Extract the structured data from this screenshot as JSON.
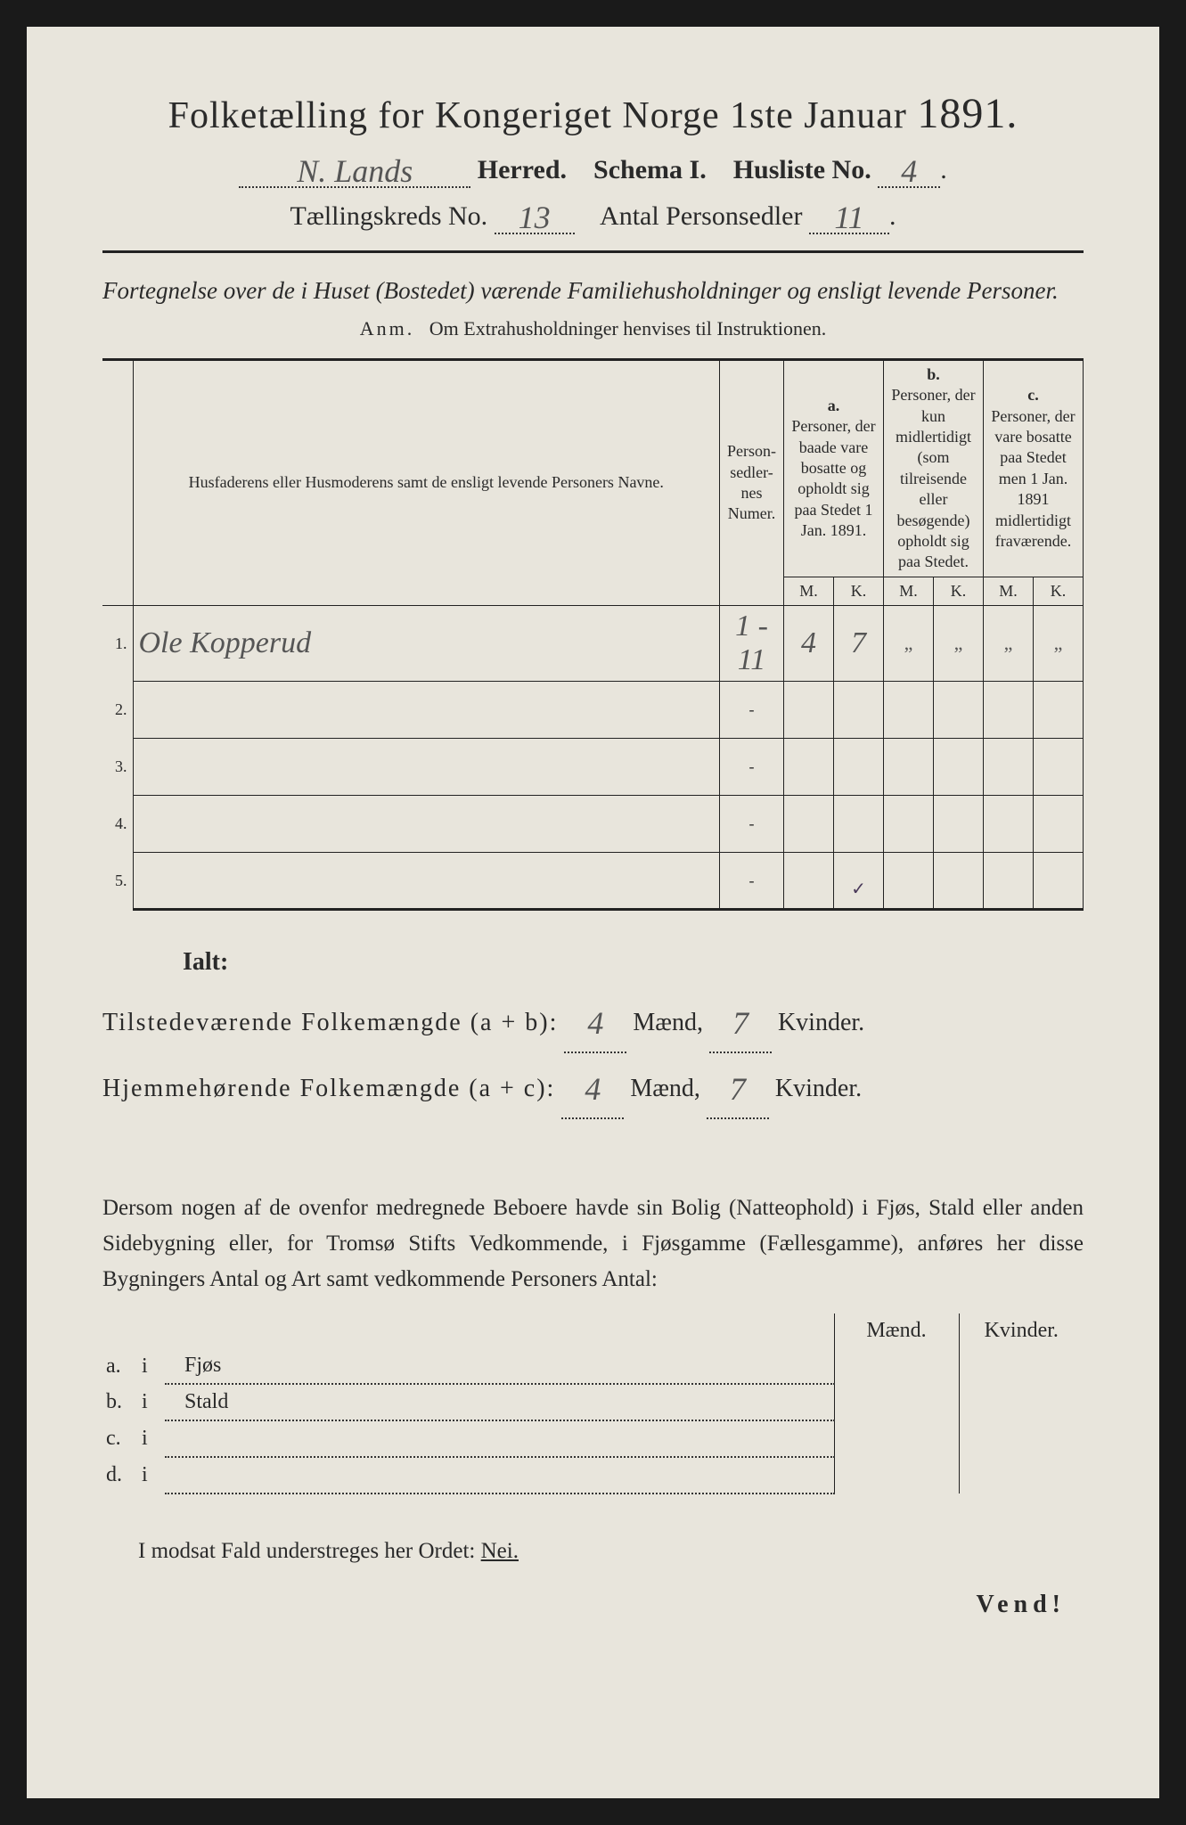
{
  "title": {
    "prefix": "Folketælling for Kongeriget Norge 1ste Januar",
    "year": "1891."
  },
  "header": {
    "herred_value": "N. Lands",
    "herred_label": "Herred.",
    "schema_label": "Schema I.",
    "husliste_label": "Husliste No.",
    "husliste_value": "4",
    "kreds_label": "Tællingskreds No.",
    "kreds_value": "13",
    "antal_label": "Antal Personsedler",
    "antal_value": "11"
  },
  "description": "Fortegnelse over de i Huset (Bostedet) værende Familiehusholdninger og ensligt levende Personer.",
  "anm": {
    "label": "Anm.",
    "text": "Om Extrahusholdninger henvises til Instruktionen."
  },
  "columns": {
    "name": "Husfaderens eller Husmoderens samt de ensligt levende Personers Navne.",
    "numer": "Person-\nsedler-\nnes\nNumer.",
    "a": {
      "letter": "a.",
      "text": "Personer, der baade vare bosatte og opholdt sig paa Stedet 1 Jan. 1891."
    },
    "b": {
      "letter": "b.",
      "text": "Personer, der kun midlertidigt (som tilreisende eller besøgende) opholdt sig paa Stedet."
    },
    "c": {
      "letter": "c.",
      "text": "Personer, der vare bosatte paa Stedet men 1 Jan. 1891 midlertidigt fraværende."
    },
    "m": "M.",
    "k": "K."
  },
  "rows": [
    {
      "n": "1.",
      "name": "Ole Kopperud",
      "numer": "1 - 11",
      "a_m": "4",
      "a_k": "7",
      "b_m": "„",
      "b_k": "„",
      "c_m": "„",
      "c_k": "„"
    },
    {
      "n": "2.",
      "name": "",
      "numer": "-",
      "a_m": "",
      "a_k": "",
      "b_m": "",
      "b_k": "",
      "c_m": "",
      "c_k": ""
    },
    {
      "n": "3.",
      "name": "",
      "numer": "-",
      "a_m": "",
      "a_k": "",
      "b_m": "",
      "b_k": "",
      "c_m": "",
      "c_k": ""
    },
    {
      "n": "4.",
      "name": "",
      "numer": "-",
      "a_m": "",
      "a_k": "",
      "b_m": "",
      "b_k": "",
      "c_m": "",
      "c_k": ""
    },
    {
      "n": "5.",
      "name": "",
      "numer": "-",
      "a_m": "",
      "a_k": "",
      "b_m": "",
      "b_k": "",
      "c_m": "",
      "c_k": ""
    }
  ],
  "ticks": {
    "a_m": "",
    "a_k": "✓"
  },
  "totals": {
    "ialt": "Ialt:",
    "line1_label": "Tilstedeværende Folkemængde (a + b):",
    "line1_m": "4",
    "line1_k": "7",
    "line2_label": "Hjemmehørende Folkemængde (a + c):",
    "line2_m": "4",
    "line2_k": "7",
    "maend": "Mænd,",
    "kvinder": "Kvinder."
  },
  "paragraph": "Dersom nogen af de ovenfor medregnede Beboere havde sin Bolig (Natteophold) i Fjøs, Stald eller anden Sidebygning eller, for Tromsø Stifts Vedkommende, i Fjøsgamme (Fællesgamme), anføres her disse Bygningers Antal og Art samt vedkommende Personers Antal:",
  "sub": {
    "maend": "Mænd.",
    "kvinder": "Kvinder.",
    "rows": [
      {
        "k": "a.",
        "i": "i",
        "label": "Fjøs"
      },
      {
        "k": "b.",
        "i": "i",
        "label": "Stald"
      },
      {
        "k": "c.",
        "i": "i",
        "label": ""
      },
      {
        "k": "d.",
        "i": "i",
        "label": ""
      }
    ]
  },
  "nei": {
    "prefix": "I modsat Fald understreges her Ordet:",
    "word": "Nei."
  },
  "vend": "Vend!"
}
